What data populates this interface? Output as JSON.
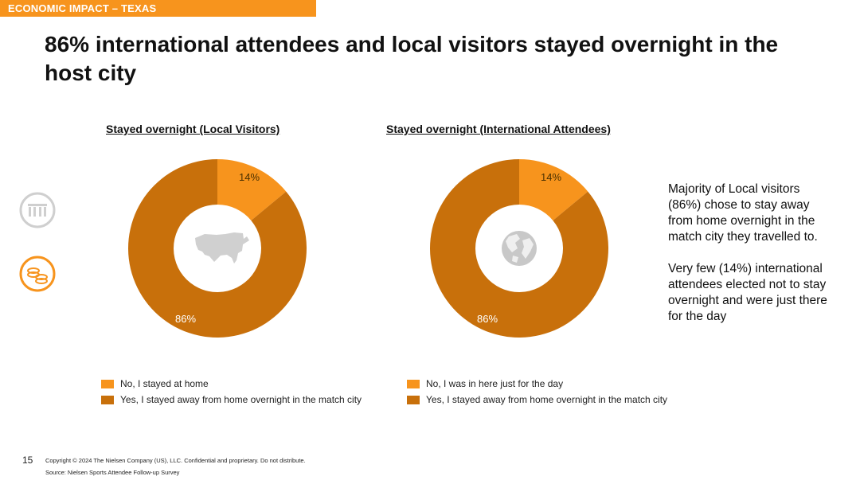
{
  "header": {
    "section_label": "ECONOMIC IMPACT – TEXAS"
  },
  "page_title": "86% international attendees and local visitors stayed overnight in the host city",
  "colors": {
    "light_orange": "#f7941d",
    "dark_orange": "#c8700b",
    "accent": "#f7941d",
    "icon_gray": "#cfcfcf"
  },
  "chart_data": [
    {
      "type": "pie",
      "title": "Stayed overnight (Local Visitors)",
      "center_icon": "usa-map-icon",
      "slices": [
        {
          "label": "No, I stayed at home",
          "value": 14,
          "display": "14%",
          "color": "#f7941d"
        },
        {
          "label": "Yes, I stayed away from home overnight in the match city",
          "value": 86,
          "display": "86%",
          "color": "#c8700b"
        }
      ]
    },
    {
      "type": "pie",
      "title": "Stayed overnight (International Attendees)",
      "center_icon": "globe-icon",
      "slices": [
        {
          "label": "No, I was in here just for the day",
          "value": 14,
          "display": "14%",
          "color": "#f7941d"
        },
        {
          "label": "Yes, I stayed away from home overnight in the match city",
          "value": 86,
          "display": "86%",
          "color": "#c8700b"
        }
      ]
    }
  ],
  "side_text": {
    "p1": "Majority of Local visitors (86%) chose to stay away from home overnight in the match city they travelled to.",
    "p2": "Very few (14%) international attendees elected not to stay overnight and were just there for the day"
  },
  "side_icons": [
    {
      "name": "stadium-icon",
      "color": "#cfcfcf"
    },
    {
      "name": "coins-icon",
      "color": "#f7941d"
    }
  ],
  "footer": {
    "page_number": "15",
    "copyright": "Copyright © 2024 The Nielsen Company (US), LLC. Confidential and proprietary. Do not distribute.",
    "source": "Source: Nielsen Sports Attendee Follow-up Survey"
  }
}
